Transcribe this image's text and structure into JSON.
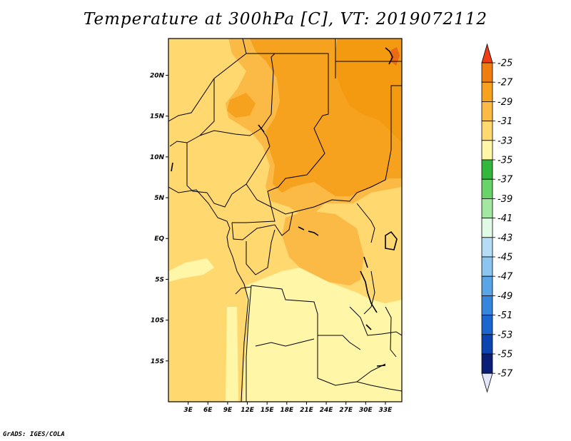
{
  "title": "Temperature at 300hPa [C], VT: 2019072112",
  "credit": "GrADS: IGES/COLA",
  "map": {
    "lat_range": [
      -20,
      24.5
    ],
    "lon_range": [
      0,
      35.5
    ],
    "lat_ticks": [
      {
        "value": 20,
        "label": "20N"
      },
      {
        "value": 15,
        "label": "15N"
      },
      {
        "value": 10,
        "label": "10N"
      },
      {
        "value": 5,
        "label": "5N"
      },
      {
        "value": 0,
        "label": "EQ"
      },
      {
        "value": -5,
        "label": "5S"
      },
      {
        "value": -10,
        "label": "10S"
      },
      {
        "value": -15,
        "label": "15S"
      }
    ],
    "lon_ticks": [
      {
        "value": 3,
        "label": "3E"
      },
      {
        "value": 6,
        "label": "6E"
      },
      {
        "value": 9,
        "label": "9E"
      },
      {
        "value": 12,
        "label": "12E"
      },
      {
        "value": 15,
        "label": "15E"
      },
      {
        "value": 18,
        "label": "18E"
      },
      {
        "value": 21,
        "label": "21E"
      },
      {
        "value": 24,
        "label": "24E"
      },
      {
        "value": 27,
        "label": "27E"
      },
      {
        "value": 30,
        "label": "30E"
      },
      {
        "value": 33,
        "label": "33E"
      }
    ],
    "background_color": "#ffd970"
  },
  "colorbar": {
    "levels": [
      {
        "label": "-25",
        "color": "#e8501e"
      },
      {
        "label": "-27",
        "color": "#f07d0f"
      },
      {
        "label": "-29",
        "color": "#f7a21f"
      },
      {
        "label": "-31",
        "color": "#fbb945"
      },
      {
        "label": "-33",
        "color": "#ffd970"
      },
      {
        "label": "-35",
        "color": "#fff6a8"
      },
      {
        "label": "-37",
        "color": "#33b83c"
      },
      {
        "label": "-39",
        "color": "#69d268"
      },
      {
        "label": "-41",
        "color": "#a3e8a0"
      },
      {
        "label": "-43",
        "color": "#e1fae6"
      },
      {
        "label": "-45",
        "color": "#b4dcf5"
      },
      {
        "label": "-47",
        "color": "#8cc6f0"
      },
      {
        "label": "-49",
        "color": "#5aa5e6"
      },
      {
        "label": "-51",
        "color": "#3586dc"
      },
      {
        "label": "-53",
        "color": "#1c67cf"
      },
      {
        "label": "-55",
        "color": "#0c45b0"
      },
      {
        "label": "-57",
        "color": "#0a1e78"
      }
    ],
    "top_triangle_color": "#f03c14",
    "bottom_triangle_color": "#e6e6fa"
  }
}
